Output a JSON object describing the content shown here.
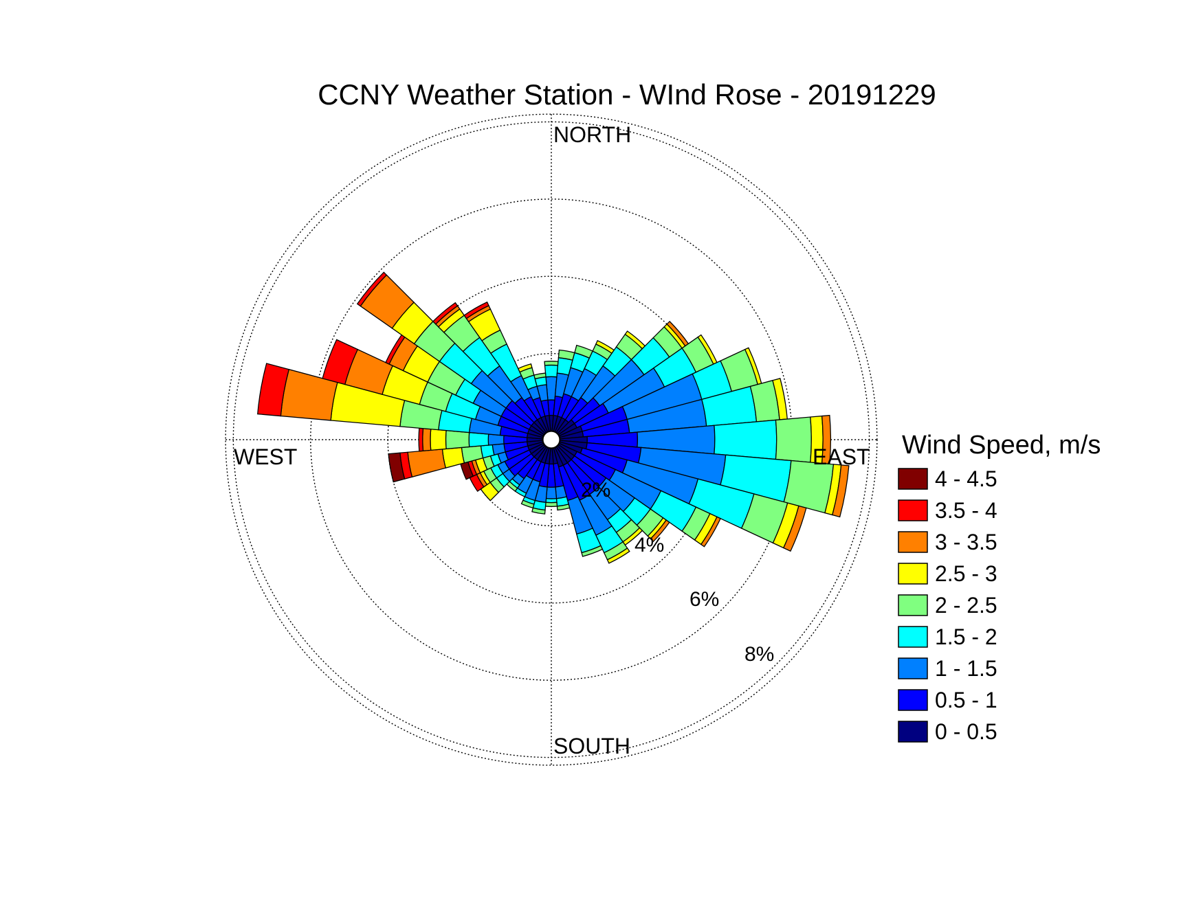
{
  "chart_data": {
    "type": "wind-rose",
    "title": "CCNY Weather Station - WInd Rose - 20191229",
    "direction_labels": {
      "north": "NORTH",
      "east": "EAST",
      "south": "SOUTH",
      "west": "WEST"
    },
    "radial_ticks": [
      "2%",
      "4%",
      "6%",
      "8%"
    ],
    "radial_grid_values": [
      2,
      4,
      6,
      8
    ],
    "radial_max": 8.2,
    "grid": true,
    "direction_bins": 36,
    "bin_width_deg": 10,
    "legend": {
      "title": "Wind Speed, m/s",
      "placement": "right",
      "items": [
        {
          "label": "4 - 4.5",
          "color": "#800000"
        },
        {
          "label": "3.5 - 4",
          "color": "#ff0000"
        },
        {
          "label": "3 - 3.5",
          "color": "#ff8000"
        },
        {
          "label": "2.5 - 3",
          "color": "#ffff00"
        },
        {
          "label": "2 - 2.5",
          "color": "#80ff80"
        },
        {
          "label": "1.5 - 2",
          "color": "#00ffff"
        },
        {
          "label": "1 - 1.5",
          "color": "#0080ff"
        },
        {
          "label": "0.5 - 1",
          "color": "#0000ff"
        },
        {
          "label": "0 - 0.5",
          "color": "#000080"
        }
      ]
    },
    "speed_bins": [
      "0 - 0.5",
      "0.5 - 1",
      "1 - 1.5",
      "1.5 - 2",
      "2 - 2.5",
      "2.5 - 3",
      "3 - 3.5",
      "3.5 - 4",
      "4 - 4.5"
    ],
    "directions_deg": [
      0,
      10,
      20,
      30,
      40,
      50,
      60,
      70,
      80,
      90,
      100,
      110,
      120,
      130,
      140,
      150,
      160,
      170,
      180,
      190,
      200,
      210,
      220,
      230,
      240,
      250,
      260,
      270,
      280,
      290,
      300,
      310,
      320,
      330,
      340,
      350
    ],
    "frequencies_pct": [
      [
        0.4,
        0.4,
        0.6,
        0.3,
        0.1,
        0.0,
        0.0,
        0.0,
        0.0
      ],
      [
        0.4,
        0.5,
        0.6,
        0.4,
        0.2,
        0.0,
        0.0,
        0.0,
        0.0
      ],
      [
        0.4,
        0.6,
        0.7,
        0.4,
        0.2,
        0.0,
        0.0,
        0.0,
        0.0
      ],
      [
        0.4,
        0.6,
        0.8,
        0.5,
        0.2,
        0.1,
        0.0,
        0.0,
        0.0
      ],
      [
        0.4,
        0.7,
        1.0,
        0.6,
        0.4,
        0.1,
        0.0,
        0.0,
        0.0
      ],
      [
        0.5,
        0.8,
        1.4,
        0.8,
        0.4,
        0.1,
        0.1,
        0.0,
        0.0
      ],
      [
        0.5,
        0.9,
        1.6,
        0.9,
        0.5,
        0.1,
        0.0,
        0.0,
        0.0
      ],
      [
        0.6,
        1.2,
        2.0,
        0.8,
        0.7,
        0.1,
        0.0,
        0.0,
        0.0
      ],
      [
        0.6,
        1.2,
        2.0,
        1.3,
        0.6,
        0.2,
        0.0,
        0.0,
        0.0
      ],
      [
        0.7,
        1.3,
        2.0,
        1.6,
        0.9,
        0.3,
        0.2,
        0.0,
        0.0
      ],
      [
        0.7,
        1.4,
        2.2,
        1.7,
        1.1,
        0.2,
        0.2,
        0.0,
        0.0
      ],
      [
        0.6,
        1.2,
        1.9,
        1.5,
        0.9,
        0.3,
        0.2,
        0.0,
        0.0
      ],
      [
        0.5,
        1.1,
        1.3,
        1.0,
        0.4,
        0.2,
        0.1,
        0.0,
        0.0
      ],
      [
        0.5,
        1.0,
        0.9,
        0.5,
        0.4,
        0.1,
        0.1,
        0.0,
        0.0
      ],
      [
        0.5,
        1.0,
        0.8,
        0.4,
        0.3,
        0.1,
        0.0,
        0.0,
        0.0
      ],
      [
        0.5,
        1.0,
        1.0,
        0.5,
        0.2,
        0.1,
        0.0,
        0.0,
        0.0
      ],
      [
        0.5,
        0.9,
        0.9,
        0.5,
        0.1,
        0.0,
        0.0,
        0.0,
        0.0
      ],
      [
        0.4,
        0.6,
        0.3,
        0.2,
        0.1,
        0.0,
        0.0,
        0.0,
        0.0
      ],
      [
        0.4,
        0.6,
        0.3,
        0.1,
        0.1,
        0.0,
        0.0,
        0.0,
        0.0
      ],
      [
        0.4,
        0.6,
        0.4,
        0.2,
        0.1,
        0.0,
        0.0,
        0.0,
        0.0
      ],
      [
        0.4,
        0.5,
        0.5,
        0.1,
        0.1,
        0.0,
        0.0,
        0.0,
        0.0
      ],
      [
        0.4,
        0.5,
        0.4,
        0.1,
        0.0,
        0.0,
        0.0,
        0.0,
        0.0
      ],
      [
        0.4,
        0.6,
        0.2,
        0.1,
        0.1,
        0.0,
        0.0,
        0.0,
        0.0
      ],
      [
        0.4,
        0.7,
        0.2,
        0.2,
        0.2,
        0.3,
        0.0,
        0.0,
        0.0
      ],
      [
        0.4,
        0.7,
        0.2,
        0.2,
        0.2,
        0.1,
        0.1,
        0.2,
        0.0
      ],
      [
        0.4,
        0.6,
        0.2,
        0.2,
        0.2,
        0.2,
        0.1,
        0.1,
        0.2
      ],
      [
        0.4,
        0.6,
        0.3,
        0.3,
        0.5,
        0.5,
        0.9,
        0.2,
        0.3
      ],
      [
        0.4,
        0.6,
        0.4,
        0.5,
        0.6,
        0.4,
        0.2,
        0.1,
        0.0
      ],
      [
        0.4,
        0.7,
        0.8,
        0.8,
        1.0,
        1.8,
        1.3,
        0.6,
        0.0
      ],
      [
        0.4,
        0.8,
        0.6,
        0.8,
        0.7,
        1.0,
        1.0,
        0.6,
        0.0
      ],
      [
        0.4,
        0.8,
        0.8,
        0.5,
        0.8,
        0.7,
        0.4,
        0.1,
        0.0
      ],
      [
        0.4,
        0.8,
        1.1,
        1.0,
        0.8,
        0.7,
        1.0,
        0.1,
        0.0
      ],
      [
        0.4,
        0.7,
        1.0,
        0.9,
        0.7,
        0.2,
        0.1,
        0.1,
        0.0
      ],
      [
        0.4,
        0.6,
        0.6,
        0.9,
        0.4,
        0.6,
        0.1,
        0.1,
        0.0
      ],
      [
        0.4,
        0.5,
        0.3,
        0.3,
        0.2,
        0.1,
        0.0,
        0.0,
        0.0
      ],
      [
        0.4,
        0.4,
        0.4,
        0.2,
        0.1,
        0.0,
        0.0,
        0.0,
        0.0
      ]
    ]
  }
}
